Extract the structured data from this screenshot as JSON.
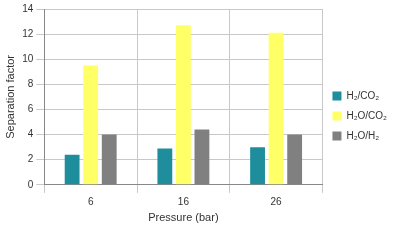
{
  "chart_data": {
    "type": "bar",
    "x_label": "Pressure (bar)",
    "y_label": "Separation factor",
    "categories": [
      "6",
      "16",
      "26"
    ],
    "series": [
      {
        "name": "H₂/CO₂",
        "color": "#1f8e9c",
        "values": [
          2.4,
          2.9,
          3.0
        ]
      },
      {
        "name": "H₂O/CO₂",
        "color": "#ffff66",
        "values": [
          9.5,
          12.7,
          12.1
        ]
      },
      {
        "name": "H₂O/H₂",
        "color": "#808080",
        "values": [
          4.0,
          4.4,
          4.0
        ]
      }
    ],
    "ylim": [
      0,
      14
    ],
    "yticks": [
      0,
      2,
      4,
      6,
      8,
      10,
      12,
      14
    ],
    "grid": true,
    "legend": "right"
  }
}
